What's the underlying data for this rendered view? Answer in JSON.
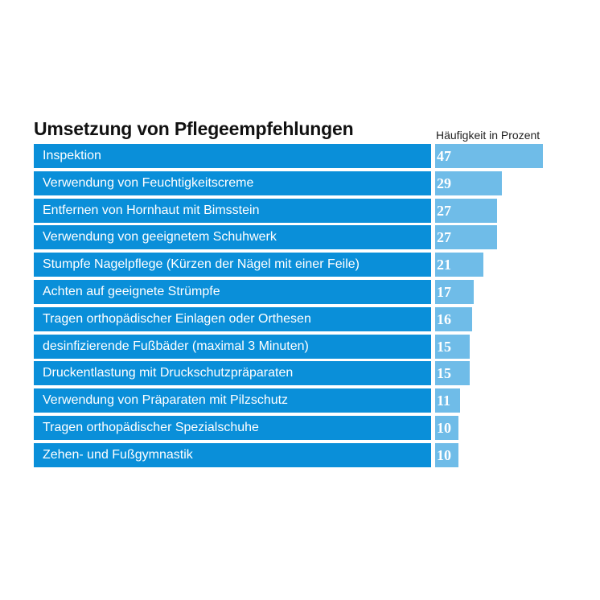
{
  "chart_data": {
    "type": "bar",
    "orientation": "horizontal",
    "title": "Umsetzung von Pflegeempfehlungen",
    "value_header": "Häufigkeit in Prozent",
    "categories": [
      "Inspektion",
      "Verwendung von Feuchtigkeitscreme",
      "Entfernen von Hornhaut mit Bimsstein",
      "Verwendung von geeignetem Schuhwerk",
      "Stumpfe Nagelpflege (Kürzen der Nägel mit einer Feile)",
      "Achten auf geeignete Strümpfe",
      "Tragen orthopädischer Einlagen oder Orthesen",
      "desinfizierende Fußbäder (maximal 3 Minuten)",
      "Druckentlastung mit Druckschutzpräparaten",
      "Verwendung von Präparaten mit Pilzschutz",
      "Tragen orthopädischer Spezialschuhe",
      "Zehen- und Fußgymnastik"
    ],
    "values": [
      47,
      29,
      27,
      27,
      21,
      17,
      16,
      15,
      15,
      11,
      10,
      10
    ],
    "value_labels": [
      "47",
      "29",
      "27",
      "27",
      "21",
      "17",
      "16",
      "15",
      "15",
      "11",
      "10",
      "10"
    ],
    "xlim": [
      0,
      47
    ],
    "grid": false,
    "legend": "none"
  },
  "colors": {
    "label_box": "#0a8fd9",
    "bar": "#6fbce8",
    "title": "#111111"
  }
}
